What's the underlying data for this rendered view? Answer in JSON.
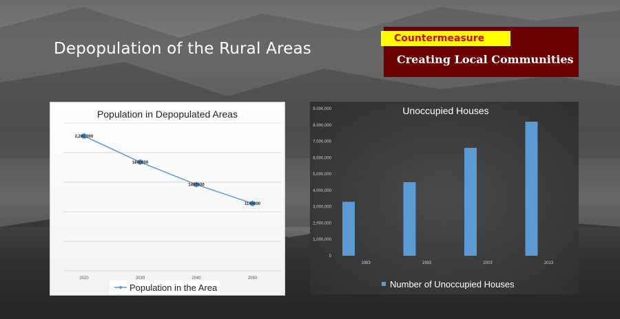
{
  "slide": {
    "title": "Depopulation of the Rural Areas",
    "countermeasure_label": "Countermeasure",
    "countermeasure_text": "Creating Local Communities"
  },
  "colors": {
    "line_series": "#5b9bd5",
    "bar_series": "#5b9bd5",
    "counter_bg": "#6b0000",
    "counter_label_bg": "#ffff00",
    "counter_label_text": "#e0001a"
  },
  "chart_data": [
    {
      "type": "line",
      "title": "Population in Depopulated Areas",
      "categories": [
        "2020",
        "2030",
        "2040",
        "2050"
      ],
      "series": [
        {
          "name": "Population in the Area",
          "values": [
            2280000,
            1840000,
            1460000,
            1140000
          ],
          "data_labels": [
            "2,280,000",
            "1840000",
            "1460000",
            "1140000"
          ]
        }
      ],
      "ylim": [
        0,
        2500000
      ],
      "grid": true,
      "legend": "bottom"
    },
    {
      "type": "bar",
      "title": "Unoccupied Houses",
      "categories": [
        "1983",
        "1993",
        "2003",
        "2013"
      ],
      "series": [
        {
          "name": "Number of Unoccupied Houses",
          "values": [
            3300000,
            4500000,
            6600000,
            8200000
          ]
        }
      ],
      "ylim": [
        0,
        9000000
      ],
      "yticks": [
        "0",
        "1,000,000",
        "2,000,000",
        "3,000,000",
        "4,000,000",
        "5,000,000",
        "6,000,000",
        "7,000,000",
        "8,000,000",
        "9,000,000"
      ],
      "grid": false,
      "legend": "bottom"
    }
  ]
}
